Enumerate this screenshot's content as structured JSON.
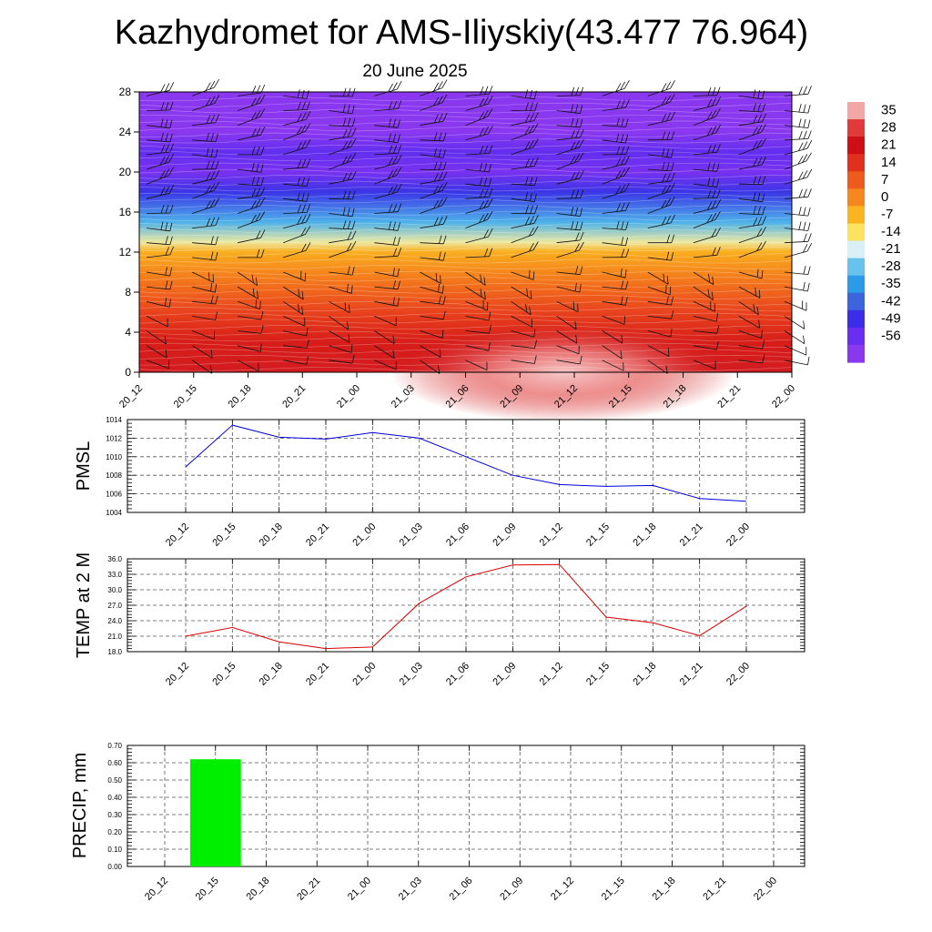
{
  "header": {
    "title": "Kazhydromet for AMS-Iliyskiy(43.477 76.964)",
    "date": "20 June 2025"
  },
  "chart_data": [
    {
      "id": "cross-section",
      "type": "heatmap",
      "title": "Kazhydromet for AMS-Iliyskiy(43.477 76.964)",
      "subtitle": "20 June 2025",
      "x": [
        "20_12",
        "20_15",
        "20_18",
        "20_21",
        "21_00",
        "21_03",
        "21_06",
        "21_09",
        "21_12",
        "21_15",
        "21_18",
        "21_21",
        "22_00"
      ],
      "y_ticks": [
        0,
        4,
        8,
        12,
        16,
        20,
        24,
        28
      ],
      "ylim": [
        0,
        28
      ],
      "colorbar_labels": [
        "35",
        "28",
        "21",
        "14",
        "7",
        "0",
        "-7",
        "-14",
        "-21",
        "-28",
        "-35",
        "-42",
        "-49",
        "-56"
      ],
      "colorbar_colors": [
        "#f2a7a7",
        "#e03a3a",
        "#cf0f15",
        "#e2301e",
        "#ef5b1c",
        "#f6871c",
        "#f9b41f",
        "#fbe25f",
        "#d9f0f6",
        "#67c3ec",
        "#2b9ae7",
        "#3c65dd",
        "#3b2de8",
        "#6a2ef0",
        "#8a38f0"
      ],
      "profile_levels": [
        0,
        3,
        6,
        9,
        12,
        13,
        15,
        18,
        20,
        22,
        24,
        28
      ],
      "profile_values": [
        26,
        21,
        14,
        6,
        -3,
        -14,
        -28,
        -45,
        -56,
        -52,
        -62,
        -66
      ],
      "grid": false
    },
    {
      "id": "pmsl",
      "type": "line",
      "ylabel": "PMSL",
      "categories": [
        "20_12",
        "20_15",
        "20_18",
        "20_21",
        "21_00",
        "21_03",
        "21_06",
        "21_09",
        "21_12",
        "21_15",
        "21_18",
        "21_21",
        "22_00"
      ],
      "values": [
        1008.9,
        1013.4,
        1012.1,
        1011.9,
        1012.6,
        1012.0,
        1010.0,
        1008.0,
        1007.0,
        1006.8,
        1006.9,
        1005.5,
        1005.2
      ],
      "ylim": [
        1004,
        1014
      ],
      "y_ticks": [
        "1004",
        "1006",
        "1008",
        "1010",
        "1012",
        "1014"
      ],
      "color": "#0000dd",
      "grid": true
    },
    {
      "id": "temp2m",
      "type": "line",
      "ylabel": "TEMP at 2 M",
      "categories": [
        "20_12",
        "20_15",
        "20_18",
        "20_21",
        "21_00",
        "21_03",
        "21_06",
        "21_09",
        "21_12",
        "21_15",
        "21_18",
        "21_21",
        "22_00"
      ],
      "values": [
        21.0,
        22.7,
        19.9,
        18.6,
        18.9,
        27.4,
        32.5,
        34.8,
        34.9,
        24.7,
        23.6,
        21.1,
        26.8
      ],
      "ylim": [
        18,
        36
      ],
      "y_ticks": [
        "18.0",
        "21.0",
        "24.0",
        "27.0",
        "30.0",
        "33.0",
        "36.0"
      ],
      "color": "#dd0000",
      "grid": true
    },
    {
      "id": "precip",
      "type": "bar",
      "ylabel": "PRECIP, mm",
      "categories": [
        "20_12",
        "20_15",
        "20_18",
        "20_21",
        "21_00",
        "21_03",
        "21_06",
        "21_09",
        "21_12",
        "21_15",
        "21_18",
        "21_21",
        "22_00"
      ],
      "values": [
        0,
        0.62,
        0,
        0,
        0,
        0,
        0,
        0,
        0,
        0,
        0,
        0,
        0
      ],
      "ylim": [
        0,
        0.7
      ],
      "y_ticks": [
        "0.00",
        "0.10",
        "0.20",
        "0.30",
        "0.40",
        "0.50",
        "0.60",
        "0.70"
      ],
      "color": "#00ee00",
      "grid": true
    }
  ]
}
